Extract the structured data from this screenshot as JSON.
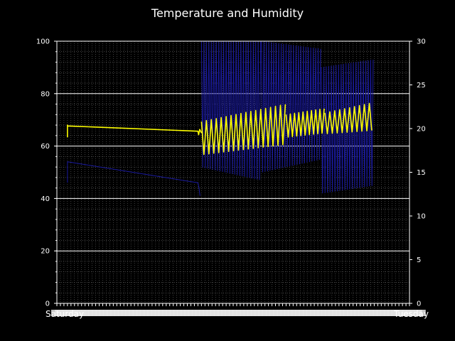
{
  "chart_data": {
    "type": "line",
    "title": "Temperature and Humidity",
    "xlabel": "",
    "ylabel": "",
    "grid": true,
    "background_color": "#000000",
    "colors": {
      "temperature": "#ffff00",
      "humidity": "#1a1aa0",
      "axes": "#ffffff",
      "major_grid": "#ffffff",
      "minor_grid": "#7f7f7f"
    },
    "left_axis": {
      "ylim": [
        0,
        100
      ],
      "ticks": [
        "0",
        "20",
        "40",
        "60",
        "80",
        "100"
      ]
    },
    "right_axis": {
      "ylim": [
        0,
        30
      ],
      "ticks": [
        "0",
        "5",
        "10",
        "15",
        "20",
        "25",
        "30"
      ]
    },
    "x_labels": {
      "first": "Saturday",
      "last": "Tuesday",
      "note": "dense overlapping date-time tick labels, not legible"
    },
    "series": [
      {
        "axis": "right",
        "color": "#ffff00",
        "segments": [
          {
            "points": [
              [
                3.0,
                19
              ],
              [
                3.0,
                20.4
              ],
              [
                3.05,
                20.3
              ],
              [
                40,
                19.7
              ],
              [
                40.2,
                19.3
              ],
              [
                40.5,
                19.9
              ],
              [
                41,
                19.5
              ]
            ]
          },
          {
            "oscillation": {
              "x_start": 41,
              "x_end": 65,
              "cycle": 1.4,
              "low_start": 17,
              "low_end": 18.2,
              "high_start": 20.8,
              "high_end": 22.8
            }
          },
          {
            "oscillation": {
              "x_start": 65,
              "x_end": 76,
              "cycle": 1.2,
              "low_start": 19.0,
              "low_end": 19.5,
              "high_start": 21.6,
              "high_end": 22.3
            }
          },
          {
            "oscillation": {
              "x_start": 76,
              "x_end": 90,
              "cycle": 1.4,
              "low_start": 19.4,
              "low_end": 19.8,
              "high_start": 21.8,
              "high_end": 23.0
            }
          }
        ]
      },
      {
        "axis": "left",
        "color": "#1a1aa0",
        "segments": [
          {
            "points": [
              [
                3.0,
                46
              ],
              [
                3.0,
                54
              ],
              [
                3.05,
                54
              ],
              [
                40,
                46
              ],
              [
                40.3,
                44
              ],
              [
                40.6,
                41
              ]
            ]
          },
          {
            "oscillation": {
              "x_start": 41,
              "x_end": 58,
              "cycle": 0.7,
              "low_start": 52,
              "low_end": 47,
              "high_start": 100,
              "high_end": 100
            }
          },
          {
            "oscillation": {
              "x_start": 58,
              "x_end": 75,
              "cycle": 0.7,
              "low_start": 50,
              "low_end": 55,
              "high_start": 100,
              "high_end": 97
            }
          },
          {
            "oscillation": {
              "x_start": 75,
              "x_end": 90,
              "cycle": 0.7,
              "low_start": 42,
              "low_end": 45,
              "high_start": 90,
              "high_end": 93
            }
          }
        ]
      }
    ]
  }
}
